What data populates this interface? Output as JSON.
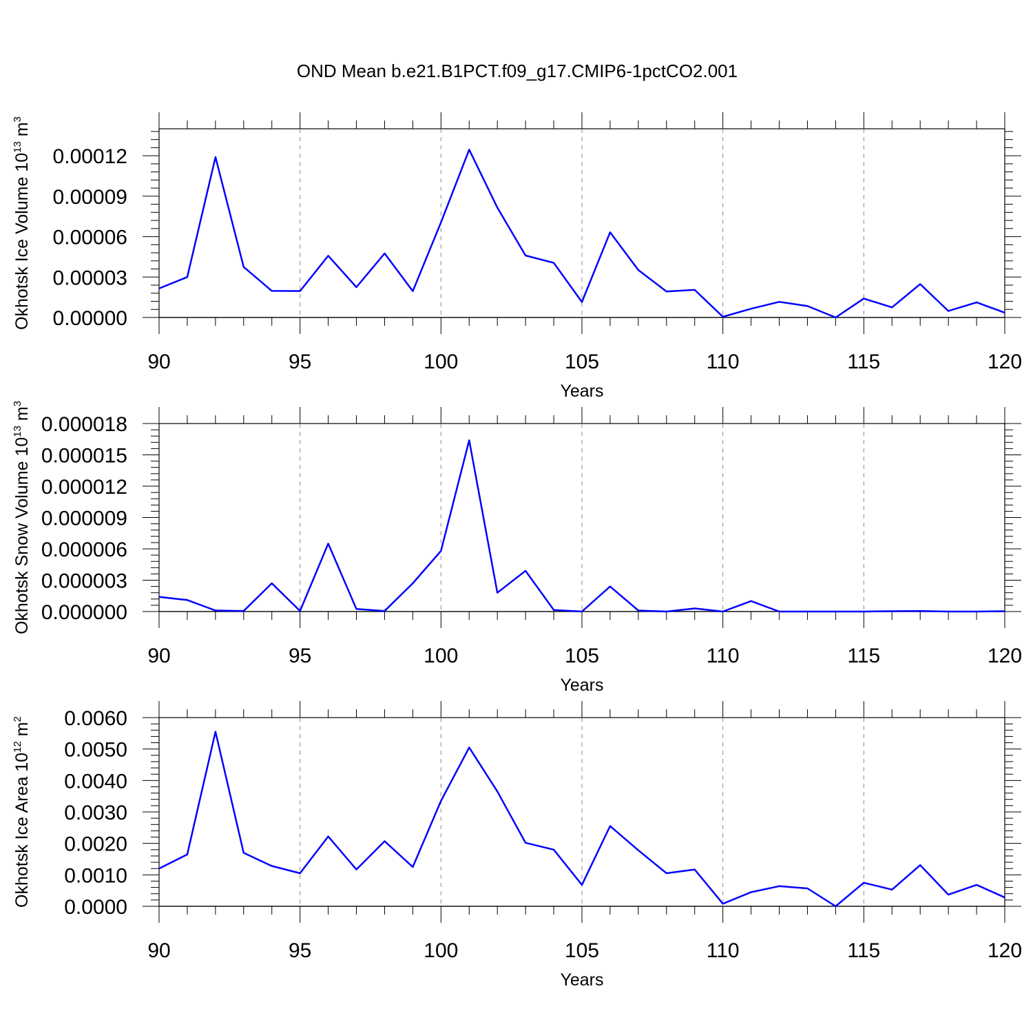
{
  "title": "OND Mean b.e21.B1PCT.f09_g17.CMIP6-1pctCO2.001",
  "colors": {
    "line": "#0000ff",
    "axis": "#000000",
    "grid": "#888888",
    "background": "#ffffff"
  },
  "chart_data": [
    {
      "type": "line",
      "xlabel": "Years",
      "ylabel": {
        "text": "Okhotsk Ice Volume 10",
        "exp": "13",
        "unit": " m",
        "unit_exp": "3"
      },
      "xlim": [
        90,
        120
      ],
      "ylim": [
        0,
        0.00014
      ],
      "xticks": [
        90,
        95,
        100,
        105,
        110,
        115,
        120
      ],
      "xtick_labels": [
        "90",
        "95",
        "100",
        "105",
        "110",
        "115",
        "120"
      ],
      "yticks": [
        0,
        3e-05,
        6e-05,
        9e-05,
        0.00012
      ],
      "ytick_labels": [
        "0.00000",
        "0.00003",
        "0.00006",
        "0.00009",
        "0.00012"
      ],
      "grid": "vertical dashed at major x ticks",
      "x": [
        90,
        91,
        92,
        93,
        94,
        95,
        96,
        97,
        98,
        99,
        100,
        101,
        102,
        103,
        104,
        105,
        106,
        107,
        108,
        109,
        110,
        111,
        112,
        113,
        114,
        115,
        116,
        117,
        118,
        119,
        120
      ],
      "series": [
        {
          "values": [
            2.15e-05,
            3e-05,
            0.000119,
            3.75e-05,
            1.97e-05,
            1.96e-05,
            4.58e-05,
            2.25e-05,
            4.75e-05,
            1.95e-05,
            7.05e-05,
            0.0001245,
            8.15e-05,
            4.6e-05,
            4.05e-05,
            1.15e-05,
            6.32e-05,
            3.52e-05,
            1.93e-05,
            2.05e-05,
            5e-07,
            6.5e-06,
            1.16e-05,
            8.5e-06,
            0.0,
            1.4e-05,
            7.5e-06,
            2.48e-05,
            4.8e-06,
            1.12e-05,
            3.5e-06
          ]
        }
      ]
    },
    {
      "type": "line",
      "xlabel": "Years",
      "ylabel": {
        "text": "Okhotsk Snow Volume 10",
        "exp": "13",
        "unit": " m",
        "unit_exp": "3"
      },
      "xlim": [
        90,
        120
      ],
      "ylim": [
        0,
        1.8e-05
      ],
      "xticks": [
        90,
        95,
        100,
        105,
        110,
        115,
        120
      ],
      "xtick_labels": [
        "90",
        "95",
        "100",
        "105",
        "110",
        "115",
        "120"
      ],
      "yticks": [
        0,
        3e-06,
        6e-06,
        9e-06,
        1.2e-05,
        1.5e-05,
        1.8e-05
      ],
      "ytick_labels": [
        "0.000000",
        "0.000003",
        "0.000006",
        "0.000009",
        "0.000012",
        "0.000015",
        "0.000018"
      ],
      "grid": "vertical dashed at major x ticks",
      "x": [
        90,
        91,
        92,
        93,
        94,
        95,
        96,
        97,
        98,
        99,
        100,
        101,
        102,
        103,
        104,
        105,
        106,
        107,
        108,
        109,
        110,
        111,
        112,
        113,
        114,
        115,
        116,
        117,
        118,
        119,
        120
      ],
      "series": [
        {
          "values": [
            1.4e-06,
            1.1e-06,
            1e-07,
            5e-08,
            2.7e-06,
            5e-08,
            6.5e-06,
            2.5e-07,
            5e-08,
            2.7e-06,
            5.8e-06,
            1.64e-05,
            1.8e-06,
            3.9e-06,
            1.5e-07,
            0.0,
            2.4e-06,
            1e-07,
            0.0,
            3e-07,
            0.0,
            1e-06,
            0.0,
            0.0,
            0.0,
            0.0,
            3e-08,
            5e-08,
            0.0,
            0.0,
            3e-08
          ]
        }
      ]
    },
    {
      "type": "line",
      "xlabel": "Years",
      "ylabel": {
        "text": "Okhotsk Ice Area 10",
        "exp": "12",
        "unit": " m",
        "unit_exp": "2"
      },
      "xlim": [
        90,
        120
      ],
      "ylim": [
        0,
        0.006
      ],
      "xticks": [
        90,
        95,
        100,
        105,
        110,
        115,
        120
      ],
      "xtick_labels": [
        "90",
        "95",
        "100",
        "105",
        "110",
        "115",
        "120"
      ],
      "yticks": [
        0,
        0.001,
        0.002,
        0.003,
        0.004,
        0.005,
        0.006
      ],
      "ytick_labels": [
        "0.0000",
        "0.0010",
        "0.0020",
        "0.0030",
        "0.0040",
        "0.0050",
        "0.0060"
      ],
      "grid": "vertical dashed at major x ticks",
      "x": [
        90,
        91,
        92,
        93,
        94,
        95,
        96,
        97,
        98,
        99,
        100,
        101,
        102,
        103,
        104,
        105,
        106,
        107,
        108,
        109,
        110,
        111,
        112,
        113,
        114,
        115,
        116,
        117,
        118,
        119,
        120
      ],
      "series": [
        {
          "values": [
            0.0012,
            0.00165,
            0.00555,
            0.0017,
            0.00128,
            0.00105,
            0.00222,
            0.00117,
            0.00207,
            0.00125,
            0.00335,
            0.00505,
            0.00365,
            0.00202,
            0.0018,
            0.00068,
            0.00255,
            0.00178,
            0.00105,
            0.00117,
            8e-05,
            0.00045,
            0.00064,
            0.00057,
            0.0,
            0.00075,
            0.00053,
            0.00131,
            0.00037,
            0.00068,
            0.00028
          ]
        }
      ]
    }
  ]
}
